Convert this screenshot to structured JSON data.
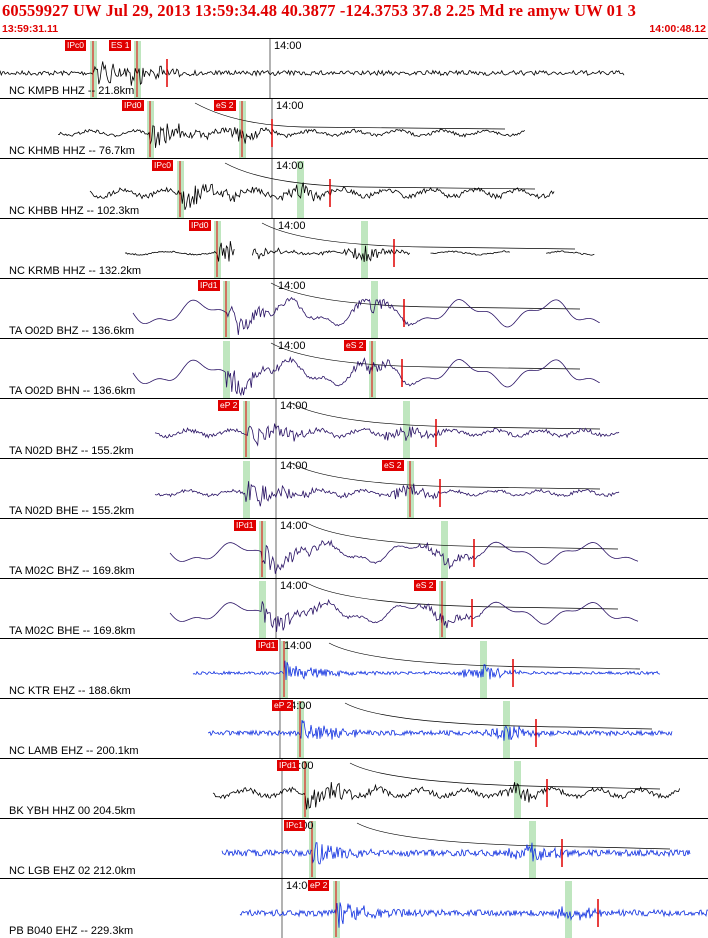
{
  "header": {
    "title": "60559927 UW Jul 29, 2013 13:59:34.48   40.3877 -124.3753 37.8 2.25 Md re amyw UW 01   3",
    "start_time": "13:59:31.11",
    "end_time": "14:00:48.12"
  },
  "time_tick_label": "14:00",
  "colors": {
    "header_text": "#e00000",
    "pick_flag": "#e00000",
    "window_band": "#bfe6bf",
    "trace_black": "#000000",
    "trace_purple": "#2b1466",
    "trace_blue": "#1030e0",
    "pick_line": "#e00000",
    "travel_time_curve": "#000000"
  },
  "traces": [
    {
      "label": "NC KMPB HHZ -- 21.8km",
      "color": "black",
      "pick_p": "IPc0",
      "pick_s": "ES 1"
    },
    {
      "label": "NC KHMB HHZ -- 76.7km",
      "color": "black",
      "pick_p": "IPd0",
      "pick_s": "eS 2"
    },
    {
      "label": "NC KHBB HHZ -- 102.3km",
      "color": "black",
      "pick_p": "IPc0",
      "pick_s": ""
    },
    {
      "label": "NC KRMB HHZ -- 132.2km",
      "color": "black",
      "pick_p": "IPd0",
      "pick_s": ""
    },
    {
      "label": "TA O02D BHZ -- 136.6km",
      "color": "purple",
      "pick_p": "IPd1",
      "pick_s": ""
    },
    {
      "label": "TA O02D BHN -- 136.6km",
      "color": "purple",
      "pick_p": "",
      "pick_s": "eS 2"
    },
    {
      "label": "TA N02D BHZ -- 155.2km",
      "color": "purple",
      "pick_p": "eP 2",
      "pick_s": ""
    },
    {
      "label": "TA N02D BHE -- 155.2km",
      "color": "purple",
      "pick_p": "",
      "pick_s": "eS 2"
    },
    {
      "label": "TA M02C BHZ -- 169.8km",
      "color": "purple",
      "pick_p": "IPd1",
      "pick_s": ""
    },
    {
      "label": "TA M02C BHE -- 169.8km",
      "color": "purple",
      "pick_p": "",
      "pick_s": "eS 2"
    },
    {
      "label": "NC KTR EHZ -- 188.6km",
      "color": "blue",
      "pick_p": "IPd1",
      "pick_s": ""
    },
    {
      "label": "NC LAMB EHZ -- 200.1km",
      "color": "blue",
      "pick_p": "eP 2",
      "pick_s": ""
    },
    {
      "label": "BK YBH HHZ 00 204.5km",
      "color": "black",
      "pick_p": "IPd1",
      "pick_s": ""
    },
    {
      "label": "NC LGB EHZ 02 212.0km",
      "color": "blue",
      "pick_p": "IPc1",
      "pick_s": ""
    },
    {
      "label": "PB B040 EHZ -- 229.3km",
      "color": "blue",
      "pick_p": "eP 2",
      "pick_s": ""
    }
  ]
}
